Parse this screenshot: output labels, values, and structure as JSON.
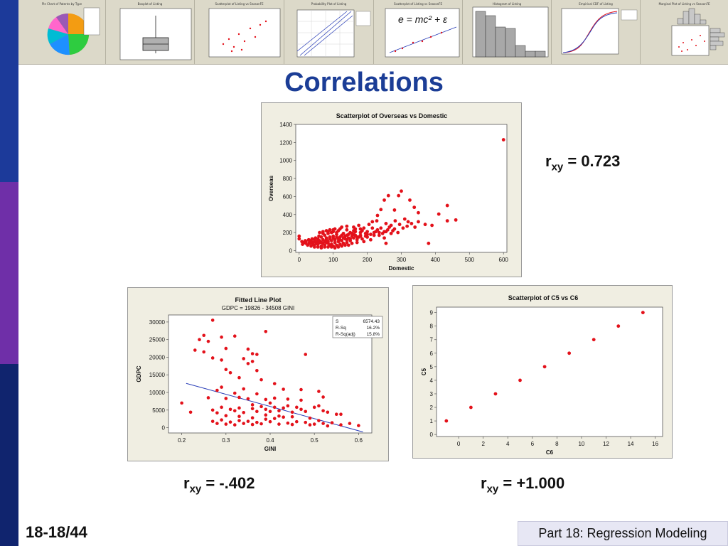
{
  "colors": {
    "title": "#1b3d96",
    "sidebar_top": "#1c3a9a",
    "sidebar_mid": "#6f2fa8",
    "sidebar_bottom": "#10246e",
    "point": "#e3111a",
    "fit_line": "#2b3fb8",
    "plot_bg": "#f0eee2"
  },
  "thumbnails": [
    {
      "title": "Pie Chart of Patents by Type",
      "kind": "pie"
    },
    {
      "title": "Boxplot of Listing",
      "kind": "boxplot"
    },
    {
      "title": "Scatterplot of Listing vs SeasonFE",
      "kind": "scatter"
    },
    {
      "title": "Probability Plot of Listing",
      "kind": "probability"
    },
    {
      "title": "Scatterplot of Listing vs SeasonFE",
      "kind": "equation"
    },
    {
      "title": "Histogram of Listing",
      "kind": "histogram"
    },
    {
      "title": "Empirical CDF of Listing",
      "kind": "cdf"
    },
    {
      "title": "Marginal Plot of Listing vs SeasonFE",
      "kind": "marginal"
    }
  ],
  "slide": {
    "title": "Correlations",
    "page_number": "18-18/44",
    "footer": "Part 18: Regression Modeling"
  },
  "annotations": {
    "r1": {
      "r": "r",
      "sub": "xy",
      "value": " = 0.723"
    },
    "r2": {
      "r": "r",
      "sub": "xy",
      "value": " = -.402"
    },
    "r3": {
      "r": "r",
      "sub": "xy",
      "value": " = +1.000"
    }
  },
  "chart_data": [
    {
      "id": "overseas_domestic",
      "type": "scatter",
      "title": "Scatterplot of Overseas vs Domestic",
      "xlabel": "Domestic",
      "ylabel": "Overseas",
      "xlim": [
        -10,
        610
      ],
      "ylim": [
        -20,
        1400
      ],
      "xticks": [
        0,
        100,
        200,
        300,
        400,
        500,
        600
      ],
      "yticks": [
        0,
        200,
        400,
        600,
        800,
        1000,
        1200,
        1400
      ],
      "points": [
        [
          600,
          1230
        ],
        [
          460,
          340
        ],
        [
          435,
          500
        ],
        [
          435,
          330
        ],
        [
          410,
          405
        ],
        [
          350,
          420
        ],
        [
          338,
          480
        ],
        [
          325,
          560
        ],
        [
          317,
          270
        ],
        [
          300,
          660
        ],
        [
          292,
          610
        ],
        [
          280,
          450
        ],
        [
          262,
          610
        ],
        [
          250,
          560
        ],
        [
          240,
          455
        ],
        [
          230,
          390
        ],
        [
          228,
          330
        ],
        [
          205,
          290
        ],
        [
          215,
          320
        ],
        [
          255,
          300
        ],
        [
          270,
          280
        ],
        [
          282,
          330
        ],
        [
          295,
          290
        ],
        [
          310,
          350
        ],
        [
          320,
          320
        ],
        [
          330,
          300
        ],
        [
          280,
          240
        ],
        [
          250,
          210
        ],
        [
          230,
          230
        ],
        [
          200,
          210
        ],
        [
          190,
          250
        ],
        [
          180,
          200
        ],
        [
          175,
          280
        ],
        [
          165,
          240
        ],
        [
          160,
          220
        ],
        [
          150,
          200
        ],
        [
          140,
          230
        ],
        [
          130,
          190
        ],
        [
          125,
          260
        ],
        [
          115,
          220
        ],
        [
          110,
          180
        ],
        [
          105,
          240
        ],
        [
          100,
          160
        ],
        [
          95,
          200
        ],
        [
          90,
          150
        ],
        [
          85,
          190
        ],
        [
          80,
          140
        ],
        [
          75,
          170
        ],
        [
          70,
          120
        ],
        [
          65,
          150
        ],
        [
          60,
          110
        ],
        [
          55,
          130
        ],
        [
          50,
          100
        ],
        [
          45,
          120
        ],
        [
          40,
          90
        ],
        [
          35,
          110
        ],
        [
          30,
          80
        ],
        [
          20,
          100
        ],
        [
          0,
          160
        ],
        [
          0,
          130
        ],
        [
          10,
          70
        ],
        [
          15,
          90
        ],
        [
          25,
          60
        ],
        [
          35,
          50
        ],
        [
          45,
          60
        ],
        [
          55,
          70
        ],
        [
          65,
          50
        ],
        [
          75,
          60
        ],
        [
          85,
          80
        ],
        [
          95,
          70
        ],
        [
          105,
          90
        ],
        [
          115,
          100
        ],
        [
          125,
          110
        ],
        [
          135,
          130
        ],
        [
          145,
          140
        ],
        [
          155,
          160
        ],
        [
          165,
          170
        ],
        [
          175,
          150
        ],
        [
          185,
          130
        ],
        [
          195,
          160
        ],
        [
          210,
          180
        ],
        [
          220,
          170
        ],
        [
          235,
          200
        ],
        [
          245,
          190
        ],
        [
          260,
          230
        ],
        [
          170,
          120
        ],
        [
          150,
          110
        ],
        [
          140,
          90
        ],
        [
          130,
          80
        ],
        [
          120,
          70
        ],
        [
          110,
          60
        ],
        [
          100,
          50
        ],
        [
          90,
          60
        ],
        [
          80,
          90
        ],
        [
          70,
          80
        ],
        [
          60,
          90
        ],
        [
          50,
          80
        ],
        [
          40,
          70
        ],
        [
          30,
          90
        ],
        [
          20,
          80
        ],
        [
          60,
          200
        ],
        [
          70,
          210
        ],
        [
          80,
          220
        ],
        [
          90,
          230
        ],
        [
          100,
          210
        ],
        [
          110,
          200
        ],
        [
          120,
          150
        ],
        [
          140,
          170
        ],
        [
          160,
          180
        ],
        [
          180,
          170
        ],
        [
          200,
          150
        ],
        [
          125,
          170
        ],
        [
          135,
          160
        ],
        [
          145,
          180
        ],
        [
          155,
          190
        ],
        [
          165,
          210
        ],
        [
          185,
          220
        ],
        [
          195,
          190
        ],
        [
          215,
          250
        ],
        [
          225,
          210
        ],
        [
          240,
          250
        ],
        [
          265,
          260
        ],
        [
          275,
          220
        ],
        [
          290,
          200
        ],
        [
          305,
          250
        ],
        [
          340,
          260
        ],
        [
          350,
          320
        ],
        [
          370,
          290
        ],
        [
          390,
          280
        ],
        [
          380,
          80
        ],
        [
          255,
          80
        ],
        [
          250,
          140
        ],
        [
          210,
          120
        ],
        [
          190,
          100
        ],
        [
          170,
          90
        ],
        [
          155,
          80
        ],
        [
          145,
          60
        ],
        [
          135,
          60
        ],
        [
          125,
          50
        ],
        [
          115,
          40
        ],
        [
          105,
          30
        ],
        [
          95,
          40
        ],
        [
          85,
          40
        ],
        [
          75,
          40
        ],
        [
          65,
          30
        ],
        [
          55,
          40
        ],
        [
          45,
          40
        ],
        [
          115,
          130
        ],
        [
          105,
          120
        ],
        [
          95,
          110
        ],
        [
          85,
          100
        ],
        [
          75,
          100
        ],
        [
          65,
          90
        ],
        [
          55,
          100
        ],
        [
          45,
          100
        ],
        [
          35,
          90
        ],
        [
          80,
          120
        ],
        [
          90,
          130
        ],
        [
          100,
          140
        ],
        [
          110,
          150
        ],
        [
          120,
          120
        ],
        [
          130,
          140
        ],
        [
          140,
          120
        ],
        [
          150,
          130
        ],
        [
          160,
          140
        ],
        [
          170,
          150
        ],
        [
          180,
          160
        ],
        [
          200,
          180
        ],
        [
          220,
          200
        ],
        [
          235,
          170
        ],
        [
          255,
          210
        ],
        [
          270,
          190
        ],
        [
          180,
          240
        ],
        [
          160,
          260
        ],
        [
          140,
          270
        ],
        [
          120,
          240
        ],
        [
          100,
          230
        ],
        [
          85,
          210
        ],
        [
          70,
          190
        ],
        [
          58,
          160
        ],
        [
          48,
          140
        ],
        [
          38,
          130
        ],
        [
          28,
          120
        ],
        [
          18,
          110
        ],
        [
          8,
          100
        ]
      ]
    },
    {
      "id": "gdpc_gini",
      "type": "scatter",
      "title": "Fitted Line Plot",
      "subtitle": "GDPC =  19826 - 34508 GINI",
      "xlabel": "GINI",
      "ylabel": "GDPC",
      "xlim": [
        0.17,
        0.63
      ],
      "ylim": [
        -1500,
        32000
      ],
      "xticks": [
        "0.2",
        "0.3",
        "0.4",
        "0.5",
        "0.6"
      ],
      "yticks": [
        0,
        5000,
        10000,
        15000,
        20000,
        25000,
        30000
      ],
      "fit": {
        "intercept": 19826,
        "slope": -34508,
        "x0": 0.21,
        "x1": 0.61
      },
      "stats": [
        [
          "S",
          "6574.43"
        ],
        [
          "R-Sq",
          "16.2%"
        ],
        [
          "R-Sq(adj)",
          "15.8%"
        ]
      ],
      "points": [
        [
          0.27,
          30500
        ],
        [
          0.39,
          27300
        ],
        [
          0.25,
          26200
        ],
        [
          0.24,
          25000
        ],
        [
          0.26,
          24500
        ],
        [
          0.32,
          26000
        ],
        [
          0.29,
          25700
        ],
        [
          0.3,
          22500
        ],
        [
          0.23,
          22000
        ],
        [
          0.25,
          21500
        ],
        [
          0.35,
          22300
        ],
        [
          0.36,
          21000
        ],
        [
          0.37,
          20800
        ],
        [
          0.48,
          20800
        ],
        [
          0.27,
          19800
        ],
        [
          0.29,
          19200
        ],
        [
          0.34,
          19600
        ],
        [
          0.35,
          18200
        ],
        [
          0.36,
          18800
        ],
        [
          0.3,
          16500
        ],
        [
          0.37,
          16200
        ],
        [
          0.31,
          15600
        ],
        [
          0.33,
          14200
        ],
        [
          0.38,
          13600
        ],
        [
          0.29,
          11500
        ],
        [
          0.34,
          11000
        ],
        [
          0.28,
          10600
        ],
        [
          0.32,
          9800
        ],
        [
          0.37,
          9600
        ],
        [
          0.43,
          10900
        ],
        [
          0.47,
          10800
        ],
        [
          0.51,
          10300
        ],
        [
          0.26,
          8500
        ],
        [
          0.3,
          8300
        ],
        [
          0.33,
          8600
        ],
        [
          0.35,
          8200
        ],
        [
          0.39,
          8000
        ],
        [
          0.41,
          8400
        ],
        [
          0.44,
          8100
        ],
        [
          0.47,
          7800
        ],
        [
          0.52,
          8700
        ],
        [
          0.2,
          7000
        ],
        [
          0.22,
          4400
        ],
        [
          0.27,
          5000
        ],
        [
          0.28,
          4200
        ],
        [
          0.29,
          5800
        ],
        [
          0.31,
          5200
        ],
        [
          0.32,
          4800
        ],
        [
          0.33,
          5600
        ],
        [
          0.34,
          4300
        ],
        [
          0.36,
          5400
        ],
        [
          0.37,
          4600
        ],
        [
          0.38,
          6000
        ],
        [
          0.39,
          5200
        ],
        [
          0.4,
          4600
        ],
        [
          0.41,
          5800
        ],
        [
          0.42,
          4800
        ],
        [
          0.43,
          5600
        ],
        [
          0.44,
          6200
        ],
        [
          0.45,
          4400
        ],
        [
          0.46,
          5800
        ],
        [
          0.47,
          5200
        ],
        [
          0.48,
          4600
        ],
        [
          0.5,
          5800
        ],
        [
          0.51,
          6200
        ],
        [
          0.52,
          4800
        ],
        [
          0.53,
          4400
        ],
        [
          0.55,
          3800
        ],
        [
          0.56,
          3800
        ],
        [
          0.58,
          1200
        ],
        [
          0.6,
          600
        ],
        [
          0.27,
          1800
        ],
        [
          0.28,
          1200
        ],
        [
          0.29,
          2200
        ],
        [
          0.3,
          1000
        ],
        [
          0.31,
          1600
        ],
        [
          0.32,
          800
        ],
        [
          0.33,
          2000
        ],
        [
          0.34,
          1200
        ],
        [
          0.35,
          1800
        ],
        [
          0.36,
          900
        ],
        [
          0.37,
          1500
        ],
        [
          0.38,
          1100
        ],
        [
          0.39,
          2400
        ],
        [
          0.4,
          1700
        ],
        [
          0.41,
          2600
        ],
        [
          0.42,
          1000
        ],
        [
          0.43,
          3000
        ],
        [
          0.44,
          1300
        ],
        [
          0.45,
          900
        ],
        [
          0.46,
          1700
        ],
        [
          0.48,
          1500
        ],
        [
          0.49,
          800
        ],
        [
          0.5,
          1000
        ],
        [
          0.51,
          2000
        ],
        [
          0.52,
          1200
        ],
        [
          0.53,
          500
        ],
        [
          0.54,
          1400
        ],
        [
          0.56,
          800
        ],
        [
          0.3,
          3400
        ],
        [
          0.33,
          3200
        ],
        [
          0.36,
          2800
        ],
        [
          0.39,
          3600
        ],
        [
          0.42,
          3300
        ],
        [
          0.45,
          3100
        ],
        [
          0.49,
          2700
        ],
        [
          0.4,
          7000
        ],
        [
          0.41,
          12500
        ],
        [
          0.36,
          6500
        ]
      ]
    },
    {
      "id": "c5_c6",
      "type": "scatter",
      "title": "Scatterplot of C5 vs C6",
      "xlabel": "C6",
      "ylabel": "C5",
      "xlim": [
        -1.8,
        16.6
      ],
      "ylim": [
        -0.15,
        9.4
      ],
      "xticks": [
        0,
        2,
        4,
        6,
        8,
        10,
        12,
        14,
        16
      ],
      "yticks": [
        0,
        1,
        2,
        3,
        4,
        5,
        6,
        7,
        8,
        9
      ],
      "points": [
        [
          -1,
          1
        ],
        [
          1,
          2
        ],
        [
          3,
          3
        ],
        [
          5,
          4
        ],
        [
          7,
          5
        ],
        [
          9,
          6
        ],
        [
          11,
          7
        ],
        [
          13,
          8
        ],
        [
          15,
          9
        ]
      ]
    }
  ]
}
